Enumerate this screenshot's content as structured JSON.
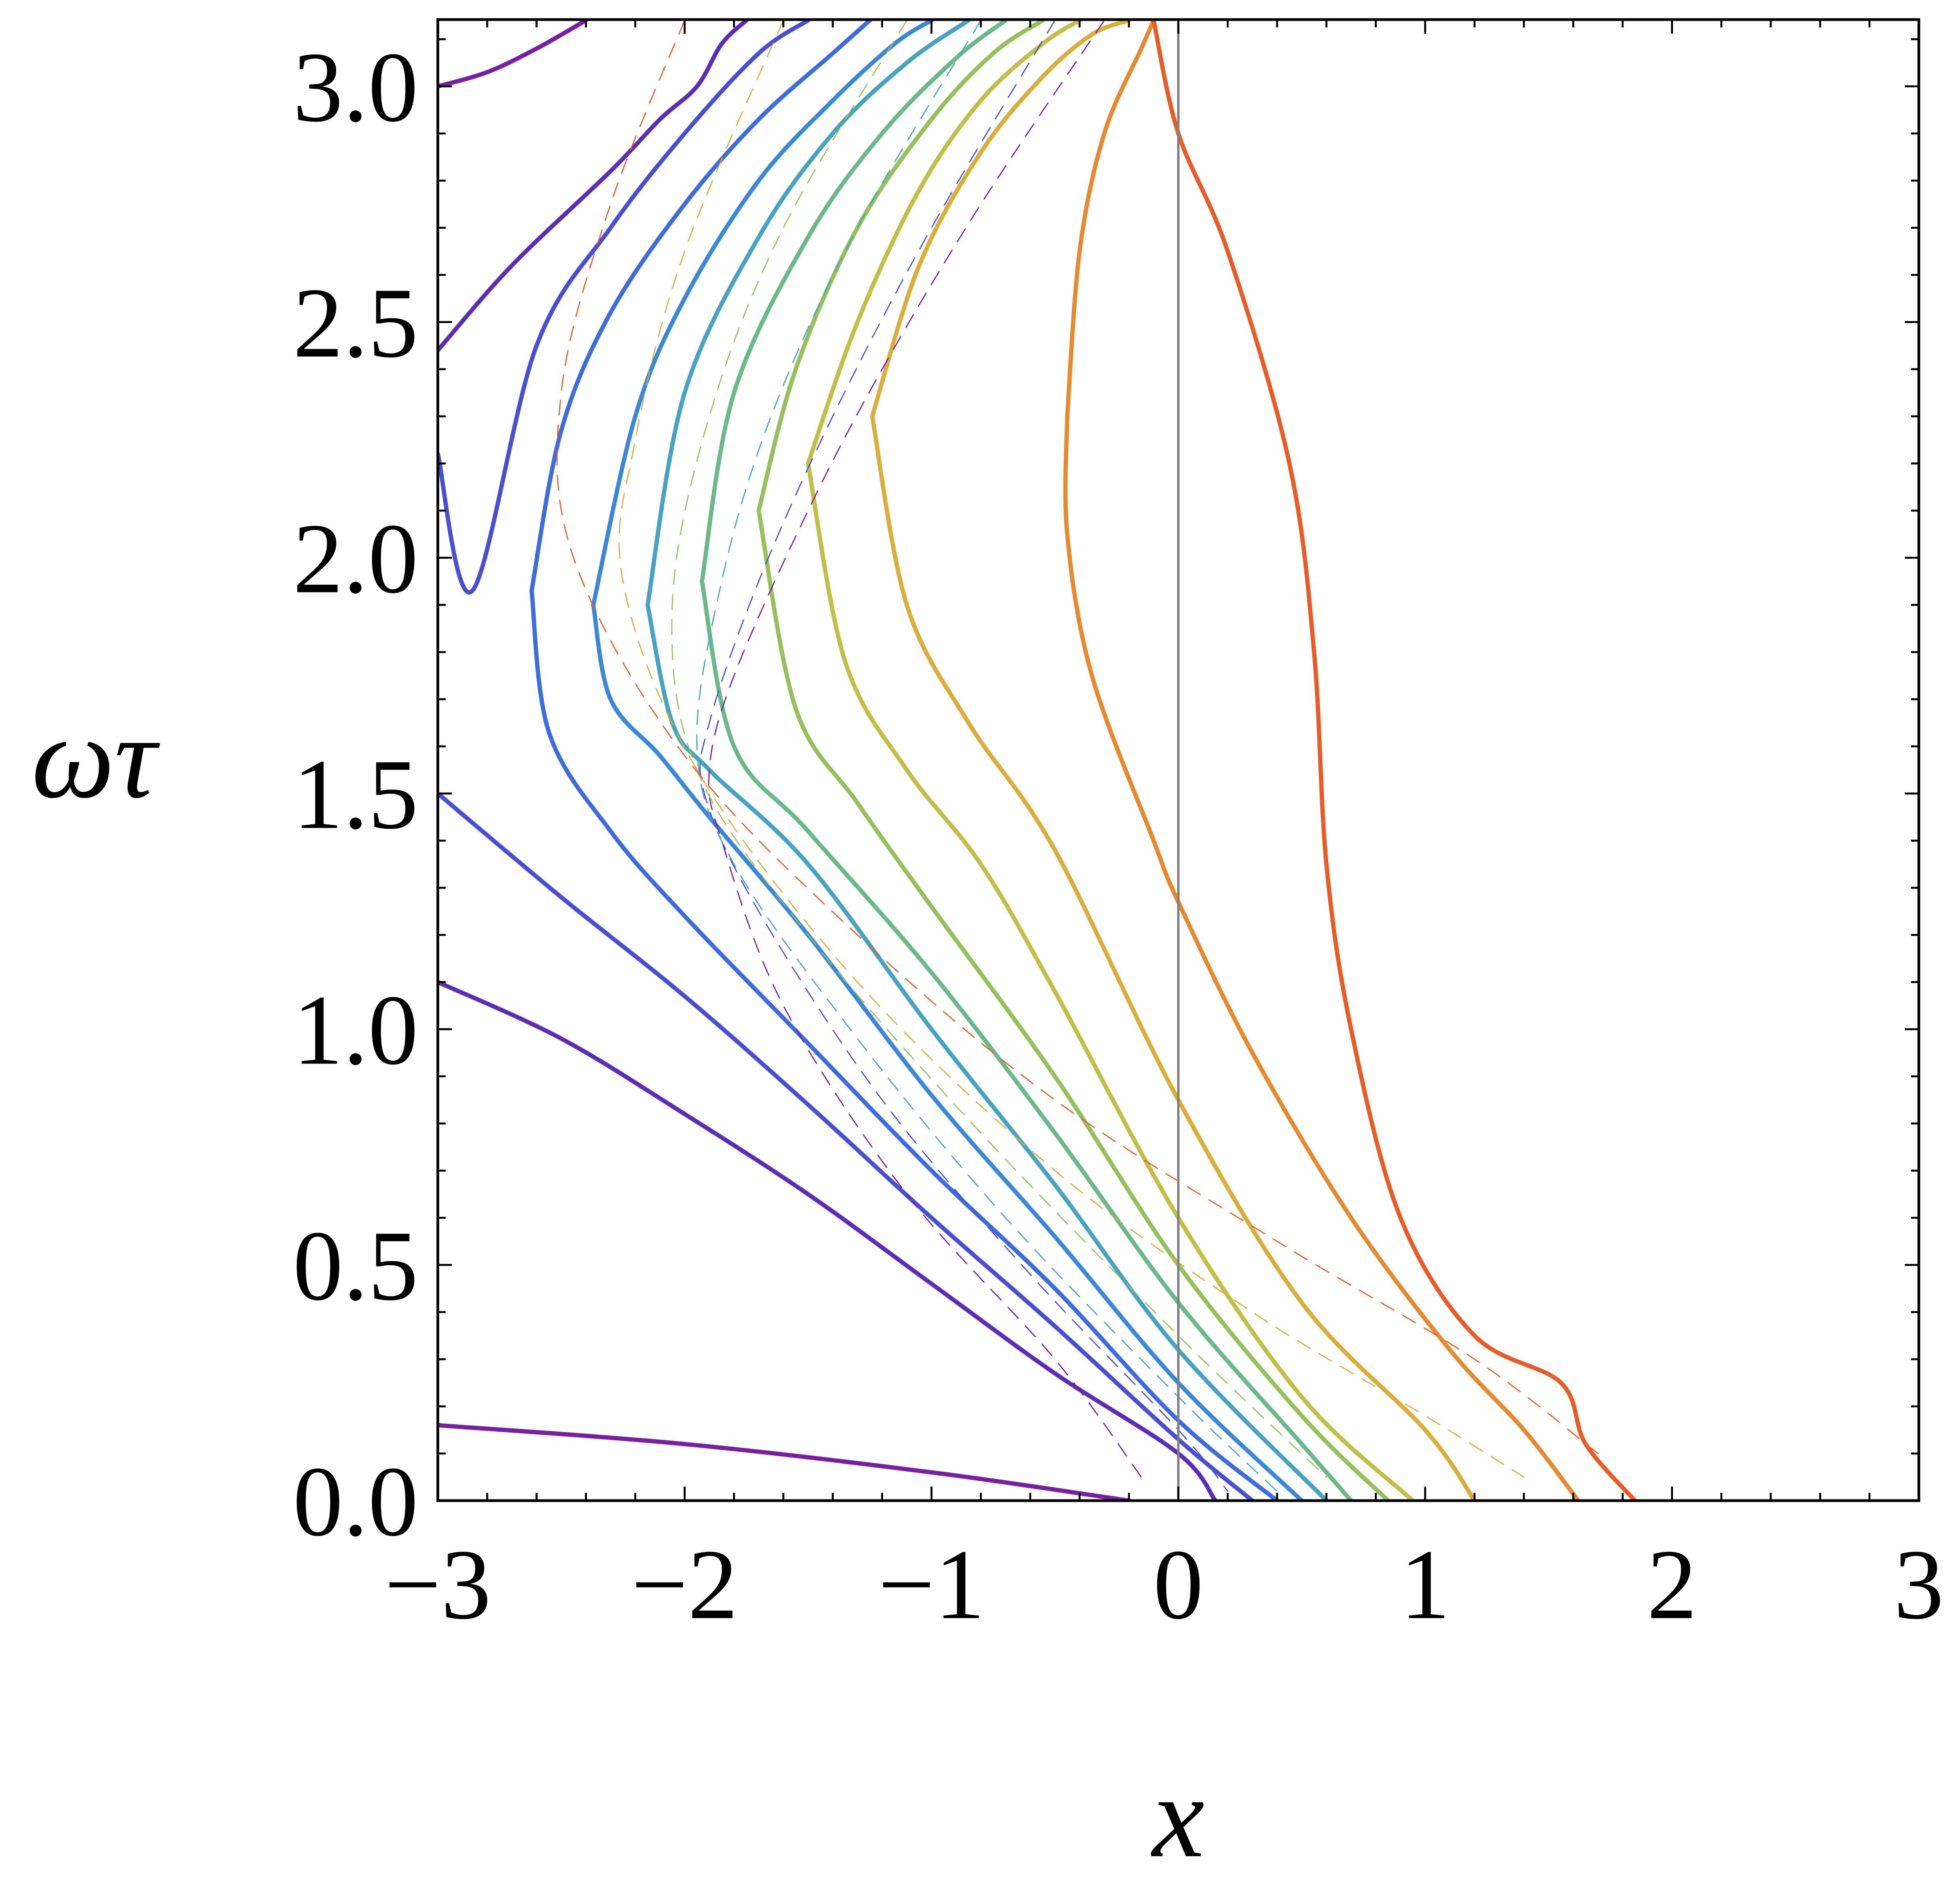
{
  "chart_data": {
    "type": "line",
    "title": "",
    "xlabel": "x",
    "ylabel": "ωτ",
    "xlim": [
      -3,
      3
    ],
    "ylim": [
      0,
      3.14159
    ],
    "xticks": [
      -3,
      -2,
      -1,
      0,
      1,
      2,
      3
    ],
    "xtick_labels": [
      "−3",
      "−2",
      "−1",
      "0",
      "1",
      "2",
      "3"
    ],
    "yticks": [
      0,
      0.5,
      1,
      1.5,
      2,
      2.5,
      3
    ],
    "ytick_labels": [
      "0.0",
      "0.5",
      "1.0",
      "1.5",
      "2.0",
      "2.5",
      "3.0"
    ],
    "grid": false,
    "vertical_reference_line": {
      "x": 0,
      "color": "#808080"
    },
    "series": [
      {
        "color": "#7a1fa2",
        "style": "solid",
        "x": [
          -3.0,
          -2.0,
          -1.0,
          -0.2
        ],
        "y": [
          0.16,
          0.12,
          0.06,
          0.0
        ]
      },
      {
        "color": "#7a1fa2",
        "style": "solid",
        "x": [
          -3.0,
          -2.8,
          -2.6,
          -2.4
        ],
        "y": [
          3.0,
          3.03,
          3.08,
          3.14
        ]
      },
      {
        "color": "#5b2fb5",
        "style": "solid",
        "x": [
          -3.0,
          -2.5,
          -2.0,
          -1.5,
          -1.0,
          -0.5,
          0.0,
          0.15
        ],
        "y": [
          1.1,
          0.98,
          0.82,
          0.65,
          0.46,
          0.27,
          0.1,
          0.0
        ]
      },
      {
        "color": "#5b2fb5",
        "style": "solid",
        "x": [
          -3.0,
          -2.7,
          -2.3,
          -2.1,
          -1.95,
          -1.85,
          -1.75
        ],
        "y": [
          2.44,
          2.62,
          2.82,
          2.93,
          3.0,
          3.09,
          3.14
        ]
      },
      {
        "color": "#4a4fd0",
        "style": "solid",
        "x": [
          -3.0,
          -2.5,
          -2.0,
          -1.5,
          -1.0,
          -0.5,
          0.0,
          0.3
        ],
        "y": [
          1.5,
          1.28,
          1.07,
          0.84,
          0.6,
          0.37,
          0.13,
          0.0
        ]
      },
      {
        "color": "#4a4fd0",
        "style": "solid",
        "x": [
          -3.0,
          -2.86,
          -2.6,
          -2.3,
          -2.0,
          -1.7,
          -1.5
        ],
        "y": [
          2.22,
          1.93,
          2.45,
          2.7,
          2.9,
          3.07,
          3.14
        ]
      },
      {
        "color": "#3f6cdc",
        "style": "solid",
        "x": [
          -2.62,
          -2.55,
          -2.3,
          -2.0,
          -1.5,
          -1.0,
          -0.5,
          0.0,
          0.4
        ],
        "y": [
          1.93,
          1.63,
          1.42,
          1.24,
          0.97,
          0.7,
          0.45,
          0.17,
          0.0
        ]
      },
      {
        "color": "#3f6cdc",
        "style": "solid",
        "x": [
          -2.62,
          -2.5,
          -2.3,
          -2.0,
          -1.7,
          -1.4,
          -1.25
        ],
        "y": [
          1.93,
          2.27,
          2.52,
          2.75,
          2.93,
          3.07,
          3.14
        ]
      },
      {
        "color": "#3a88d6",
        "style": "solid",
        "x": [
          -2.37,
          -2.3,
          -2.1,
          -1.9,
          -1.5,
          -1.0,
          -0.5,
          0.0,
          0.5
        ],
        "y": [
          1.9,
          1.7,
          1.58,
          1.45,
          1.2,
          0.86,
          0.56,
          0.25,
          0.0
        ]
      },
      {
        "color": "#3a88d6",
        "style": "solid",
        "x": [
          -2.37,
          -2.2,
          -2.0,
          -1.7,
          -1.4,
          -1.15,
          -1.0
        ],
        "y": [
          1.9,
          2.3,
          2.55,
          2.8,
          2.97,
          3.09,
          3.14
        ]
      },
      {
        "color": "#48a3c1",
        "style": "solid",
        "x": [
          -2.15,
          -2.05,
          -1.9,
          -1.5,
          -1.0,
          -0.5,
          0.0,
          0.6
        ],
        "y": [
          1.9,
          1.65,
          1.55,
          1.35,
          1.0,
          0.67,
          0.32,
          0.0
        ]
      },
      {
        "color": "#48a3c1",
        "style": "solid",
        "x": [
          -2.15,
          -2.0,
          -1.7,
          -1.4,
          -1.1,
          -0.85
        ],
        "y": [
          1.9,
          2.35,
          2.68,
          2.9,
          3.05,
          3.14
        ]
      },
      {
        "color": "#6bb98a",
        "style": "solid",
        "x": [
          -1.93,
          -1.8,
          -1.5,
          -1.0,
          -0.5,
          0.0,
          0.5,
          0.7
        ],
        "y": [
          1.95,
          1.6,
          1.42,
          1.12,
          0.78,
          0.42,
          0.12,
          0.0
        ]
      },
      {
        "color": "#6bb98a",
        "style": "solid",
        "x": [
          -1.93,
          -1.8,
          -1.5,
          -1.2,
          -0.9,
          -0.7
        ],
        "y": [
          1.95,
          2.35,
          2.68,
          2.9,
          3.06,
          3.14
        ]
      },
      {
        "color": "#96c05c",
        "style": "solid",
        "x": [
          -1.7,
          -1.55,
          -1.3,
          -1.0,
          -0.5,
          0.0,
          0.5,
          0.85
        ],
        "y": [
          2.1,
          1.68,
          1.48,
          1.26,
          0.9,
          0.5,
          0.18,
          0.0
        ]
      },
      {
        "color": "#96c05c",
        "style": "solid",
        "x": [
          -1.7,
          -1.55,
          -1.3,
          -1.0,
          -0.75,
          -0.55
        ],
        "y": [
          2.1,
          2.4,
          2.7,
          2.93,
          3.07,
          3.14
        ]
      },
      {
        "color": "#c0c048",
        "style": "solid",
        "x": [
          -1.5,
          -1.35,
          -1.1,
          -0.8,
          -0.5,
          0.0,
          0.5,
          0.95
        ],
        "y": [
          2.2,
          1.78,
          1.55,
          1.35,
          1.08,
          0.6,
          0.22,
          0.0
        ]
      },
      {
        "color": "#c0c048",
        "style": "solid",
        "x": [
          -1.5,
          -1.3,
          -1.05,
          -0.8,
          -0.55,
          -0.4
        ],
        "y": [
          2.2,
          2.5,
          2.78,
          2.97,
          3.09,
          3.14
        ]
      },
      {
        "color": "#d9ae3a",
        "style": "solid",
        "x": [
          -1.24,
          -1.1,
          -0.85,
          -0.5,
          0.0,
          0.5,
          1.0,
          1.2
        ],
        "y": [
          2.3,
          1.9,
          1.65,
          1.38,
          0.85,
          0.42,
          0.15,
          0.0
        ]
      },
      {
        "color": "#d9ae3a",
        "style": "solid",
        "x": [
          -1.24,
          -1.05,
          -0.8,
          -0.55,
          -0.35,
          -0.2
        ],
        "y": [
          2.3,
          2.62,
          2.86,
          3.02,
          3.11,
          3.14
        ]
      },
      {
        "color": "#e68a30",
        "style": "solid",
        "x": [
          -0.45,
          -0.45,
          -0.35,
          -0.1,
          0.0,
          0.3,
          0.7,
          1.1,
          1.4,
          1.62
        ],
        "y": [
          2.3,
          2.05,
          1.75,
          1.4,
          1.27,
          0.95,
          0.6,
          0.32,
          0.15,
          0.0
        ]
      },
      {
        "color": "#e68a30",
        "style": "solid",
        "x": [
          -0.45,
          -0.4,
          -0.3,
          -0.15,
          -0.1
        ],
        "y": [
          2.3,
          2.65,
          2.9,
          3.08,
          3.14
        ]
      },
      {
        "color": "#e85c28",
        "style": "solid",
        "x": [
          -0.1,
          0.0,
          0.2,
          0.45,
          0.55,
          0.6,
          0.7,
          0.9,
          1.2,
          1.55,
          1.65,
          1.85
        ],
        "y": [
          3.14,
          2.9,
          2.65,
          2.2,
          1.8,
          1.35,
          1.0,
          0.6,
          0.35,
          0.25,
          0.12,
          0.0
        ]
      },
      {
        "color": "#7a1fa2",
        "style": "dashed",
        "x": [
          -0.3,
          -0.8,
          -1.2,
          -1.5,
          -1.8,
          -1.9,
          -1.85,
          -1.6,
          -1.1,
          -0.5,
          -0.15
        ],
        "y": [
          3.14,
          2.75,
          2.4,
          2.1,
          1.75,
          1.55,
          1.4,
          1.05,
          0.65,
          0.3,
          0.05
        ]
      },
      {
        "color": "#4a4fd0",
        "style": "dashed",
        "x": [
          -0.5,
          -1.0,
          -1.4,
          -1.7,
          -1.9,
          -1.92,
          -1.7,
          -1.2,
          -0.6,
          0.0,
          0.2
        ],
        "y": [
          3.14,
          2.7,
          2.3,
          1.95,
          1.65,
          1.5,
          1.25,
          0.85,
          0.48,
          0.15,
          0.02
        ]
      },
      {
        "color": "#48a3c1",
        "style": "dashed",
        "x": [
          -0.8,
          -1.3,
          -1.65,
          -1.85,
          -1.95,
          -1.8,
          -1.3,
          -0.7,
          0.0,
          0.4
        ],
        "y": [
          3.14,
          2.7,
          2.3,
          1.95,
          1.6,
          1.35,
          0.98,
          0.6,
          0.22,
          0.02
        ]
      },
      {
        "color": "#96c05c",
        "style": "dashed",
        "x": [
          -1.1,
          -1.6,
          -1.9,
          -2.05,
          -1.95,
          -1.5,
          -0.8,
          0.0,
          0.6
        ],
        "y": [
          3.14,
          2.7,
          2.3,
          1.9,
          1.55,
          1.2,
          0.78,
          0.35,
          0.05
        ]
      },
      {
        "color": "#d9ae3a",
        "style": "dashed",
        "x": [
          -1.6,
          -2.0,
          -2.2,
          -2.25,
          -1.95,
          -1.3,
          -0.5,
          0.3,
          1.0,
          1.4
        ],
        "y": [
          3.14,
          2.65,
          2.25,
          1.95,
          1.55,
          1.1,
          0.7,
          0.4,
          0.18,
          0.05
        ]
      },
      {
        "color": "#e85c28",
        "style": "dashed",
        "x": [
          -2.0,
          -2.3,
          -2.5,
          -2.45,
          -2.0,
          -1.3,
          -0.5,
          0.4,
          1.2,
          1.7
        ],
        "y": [
          3.14,
          2.75,
          2.35,
          2.0,
          1.58,
          1.2,
          0.85,
          0.55,
          0.3,
          0.1
        ]
      }
    ]
  }
}
